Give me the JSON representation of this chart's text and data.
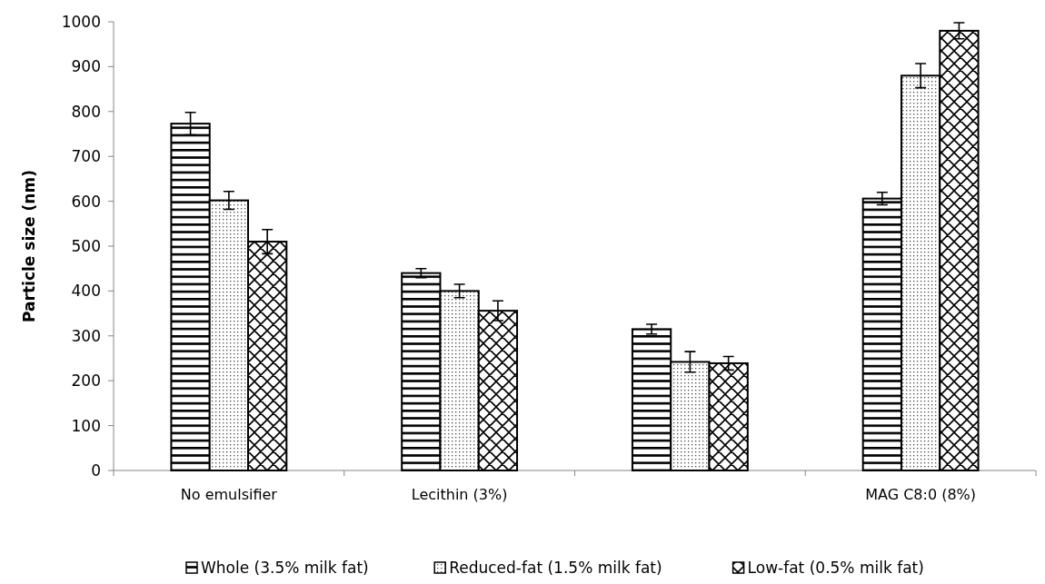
{
  "chart_data": {
    "type": "bar",
    "ylabel": "Particle size (nm)",
    "categories": [
      "No emulsifier",
      "Lecithin (3%)",
      null,
      "MAG C8:0 (8%)"
    ],
    "series": [
      {
        "name": "Whole (3.5% milk fat)",
        "color": "#000000",
        "values": [
          773,
          440,
          315,
          606
        ],
        "errors": [
          25,
          10,
          11,
          14
        ]
      },
      {
        "name": "Reduced-fat (1.5% milk fat)",
        "color": "#000000",
        "values": [
          602,
          400,
          242,
          880
        ],
        "errors": [
          20,
          15,
          23,
          27
        ]
      },
      {
        "name": "Low-fat (0.5% milk fat)",
        "color": "#000000",
        "values": [
          510,
          356,
          239,
          980
        ],
        "errors": [
          27,
          22,
          15,
          18
        ]
      }
    ],
    "ylim": [
      0,
      1000
    ],
    "yticks": [
      0,
      100,
      200,
      300,
      400,
      500,
      600,
      700,
      800,
      900,
      1000
    ],
    "legend": "bottom"
  }
}
